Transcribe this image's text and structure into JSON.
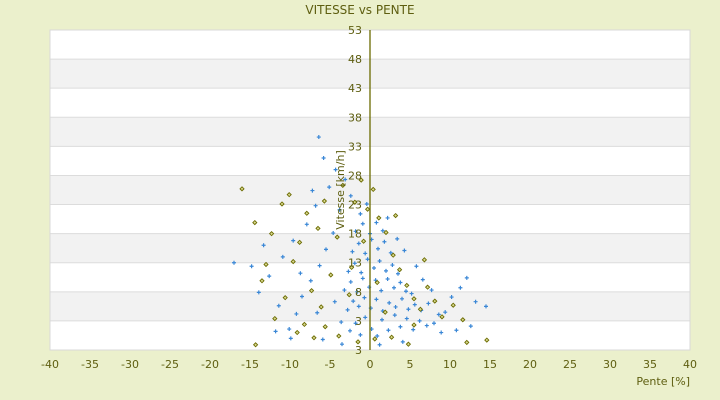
{
  "chart_data": {
    "type": "scatter",
    "title": "VITESSE vs PENTE",
    "xlabel": "Pente [%]",
    "ylabel": "Vitesse [km/h]",
    "xlim": [
      -40,
      40
    ],
    "ylim": [
      -2,
      53
    ],
    "x_ticks": [
      "-40",
      "-35",
      "-30",
      "-25",
      "-20",
      "-15",
      "-10",
      "-5",
      "0",
      "5",
      "10",
      "15",
      "20",
      "25",
      "30",
      "35",
      "40"
    ],
    "y_ticks": [
      "53",
      "48",
      "43",
      "38",
      "33",
      "28",
      "23",
      "18",
      "13",
      "8",
      "3",
      "3"
    ],
    "grid": true,
    "legend": "none",
    "colors": {
      "background": "#ebf0cc",
      "band_light": "#ffffff",
      "band_dark": "#f2f2f2",
      "axis": "#6b6b00",
      "series_1": "#3a87d6",
      "series_2": "#6b6b00"
    },
    "series": [
      {
        "marker": "plus",
        "points": [
          [
            -2.5,
            1.3
          ],
          [
            -1.8,
            2.6
          ],
          [
            -1.2,
            0.6
          ],
          [
            -0.6,
            3.6
          ],
          [
            0.2,
            1.6
          ],
          [
            0.9,
            0.4
          ],
          [
            1.5,
            3.2
          ],
          [
            2.3,
            1.4
          ],
          [
            3.1,
            4.0
          ],
          [
            3.8,
            2.0
          ],
          [
            4.6,
            3.4
          ],
          [
            5.4,
            1.5
          ],
          [
            6.2,
            3.0
          ],
          [
            7.1,
            2.2
          ],
          [
            8.0,
            2.6
          ],
          [
            8.6,
            4.1
          ],
          [
            -2.8,
            4.9
          ],
          [
            -2.1,
            6.4
          ],
          [
            -1.4,
            5.5
          ],
          [
            -0.7,
            7.0
          ],
          [
            0.1,
            5.2
          ],
          [
            0.8,
            6.7
          ],
          [
            1.6,
            4.7
          ],
          [
            2.4,
            6.1
          ],
          [
            3.2,
            5.4
          ],
          [
            4.0,
            6.8
          ],
          [
            4.8,
            5.0
          ],
          [
            5.6,
            5.8
          ],
          [
            6.4,
            4.8
          ],
          [
            7.3,
            6.0
          ],
          [
            -3.2,
            8.3
          ],
          [
            -2.4,
            9.7
          ],
          [
            -1.6,
            8.0
          ],
          [
            -0.9,
            10.3
          ],
          [
            -0.1,
            8.8
          ],
          [
            0.7,
            10.0
          ],
          [
            1.4,
            8.2
          ],
          [
            2.2,
            10.2
          ],
          [
            3.0,
            8.7
          ],
          [
            3.8,
            9.6
          ],
          [
            4.5,
            8.1
          ],
          [
            5.2,
            7.7
          ],
          [
            -2.7,
            11.5
          ],
          [
            -1.9,
            12.9
          ],
          [
            -1.1,
            11.3
          ],
          [
            -0.3,
            13.6
          ],
          [
            0.5,
            12.1
          ],
          [
            1.2,
            13.3
          ],
          [
            2.0,
            11.6
          ],
          [
            2.8,
            12.6
          ],
          [
            3.5,
            11.1
          ],
          [
            -2.2,
            14.9
          ],
          [
            -1.4,
            16.3
          ],
          [
            -0.6,
            14.6
          ],
          [
            0.2,
            17.0
          ],
          [
            1.0,
            15.4
          ],
          [
            1.8,
            16.6
          ],
          [
            2.6,
            14.7
          ],
          [
            -1.8,
            18.4
          ],
          [
            -0.9,
            19.7
          ],
          [
            0.0,
            18.0
          ],
          [
            0.8,
            19.9
          ],
          [
            1.6,
            18.5
          ],
          [
            -1.2,
            21.4
          ],
          [
            -0.4,
            23.1
          ],
          [
            -2.4,
            24.5
          ],
          [
            -3.8,
            22.1
          ],
          [
            -4.6,
            18.1
          ],
          [
            -5.5,
            15.3
          ],
          [
            -6.3,
            12.5
          ],
          [
            -7.4,
            9.9
          ],
          [
            -8.5,
            7.2
          ],
          [
            -9.2,
            4.2
          ],
          [
            -10.1,
            1.6
          ],
          [
            -11.4,
            5.6
          ],
          [
            -12.6,
            10.7
          ],
          [
            -13.3,
            16.0
          ],
          [
            -14.8,
            12.4
          ],
          [
            -17.0,
            13.0
          ],
          [
            -11.8,
            1.2
          ],
          [
            -7.9,
            19.6
          ],
          [
            -9.6,
            16.8
          ],
          [
            -6.8,
            22.8
          ],
          [
            -5.1,
            26.0
          ],
          [
            -4.3,
            29.0
          ],
          [
            -5.8,
            31.0
          ],
          [
            -3.1,
            27.3
          ],
          [
            -7.2,
            25.4
          ],
          [
            -6.4,
            34.6
          ],
          [
            9.4,
            4.5
          ],
          [
            10.2,
            7.1
          ],
          [
            11.3,
            8.7
          ],
          [
            12.1,
            10.4
          ],
          [
            13.2,
            6.3
          ],
          [
            14.5,
            5.5
          ],
          [
            12.6,
            2.1
          ],
          [
            10.8,
            1.4
          ],
          [
            7.7,
            8.3
          ],
          [
            6.6,
            10.1
          ],
          [
            5.8,
            12.4
          ],
          [
            4.3,
            15.1
          ],
          [
            3.4,
            17.1
          ],
          [
            2.2,
            20.7
          ],
          [
            -9.9,
            0.0
          ],
          [
            -5.9,
            -0.2
          ],
          [
            -3.5,
            -1.0
          ],
          [
            1.2,
            -1.1
          ],
          [
            4.1,
            -0.6
          ],
          [
            -6.6,
            4.4
          ],
          [
            -4.4,
            6.3
          ],
          [
            -3.6,
            2.8
          ],
          [
            8.9,
            1.0
          ],
          [
            -13.9,
            7.9
          ],
          [
            -10.9,
            14.0
          ],
          [
            -8.7,
            11.2
          ]
        ]
      },
      {
        "marker": "diamond",
        "points": [
          [
            -16.0,
            25.7
          ],
          [
            -14.4,
            19.9
          ],
          [
            -13.5,
            9.9
          ],
          [
            -12.3,
            18.0
          ],
          [
            -11.0,
            23.1
          ],
          [
            -10.1,
            24.7
          ],
          [
            -9.6,
            13.2
          ],
          [
            -8.8,
            16.5
          ],
          [
            -7.9,
            21.5
          ],
          [
            -7.3,
            8.2
          ],
          [
            -6.5,
            18.9
          ],
          [
            -5.7,
            23.6
          ],
          [
            -4.9,
            10.9
          ],
          [
            -4.1,
            17.4
          ],
          [
            -3.4,
            26.3
          ],
          [
            -2.6,
            7.5
          ],
          [
            -1.9,
            23.4
          ],
          [
            -1.1,
            27.2
          ],
          [
            -0.3,
            22.2
          ],
          [
            0.4,
            25.6
          ],
          [
            1.1,
            20.7
          ],
          [
            2.0,
            18.2
          ],
          [
            2.9,
            14.3
          ],
          [
            3.7,
            11.8
          ],
          [
            4.6,
            9.1
          ],
          [
            5.5,
            6.8
          ],
          [
            6.3,
            5.0
          ],
          [
            7.2,
            8.8
          ],
          [
            8.1,
            6.4
          ],
          [
            9.0,
            3.7
          ],
          [
            10.4,
            5.7
          ],
          [
            11.6,
            3.2
          ],
          [
            12.1,
            -0.7
          ],
          [
            14.6,
            -0.3
          ],
          [
            -14.3,
            -1.1
          ],
          [
            -9.1,
            1.0
          ],
          [
            -7.0,
            0.1
          ],
          [
            -5.6,
            2.0
          ],
          [
            -3.9,
            0.4
          ],
          [
            -1.5,
            -0.6
          ],
          [
            0.6,
            -0.1
          ],
          [
            2.7,
            0.2
          ],
          [
            4.8,
            -1.0
          ],
          [
            5.5,
            2.3
          ],
          [
            -11.9,
            3.4
          ],
          [
            -10.6,
            7.0
          ],
          [
            -6.1,
            5.4
          ],
          [
            -2.3,
            12.2
          ],
          [
            0.9,
            9.6
          ],
          [
            1.9,
            4.5
          ],
          [
            6.8,
            13.5
          ],
          [
            3.2,
            21.1
          ],
          [
            -0.8,
            16.7
          ],
          [
            -13.0,
            12.7
          ],
          [
            -8.2,
            2.4
          ]
        ]
      }
    ]
  }
}
